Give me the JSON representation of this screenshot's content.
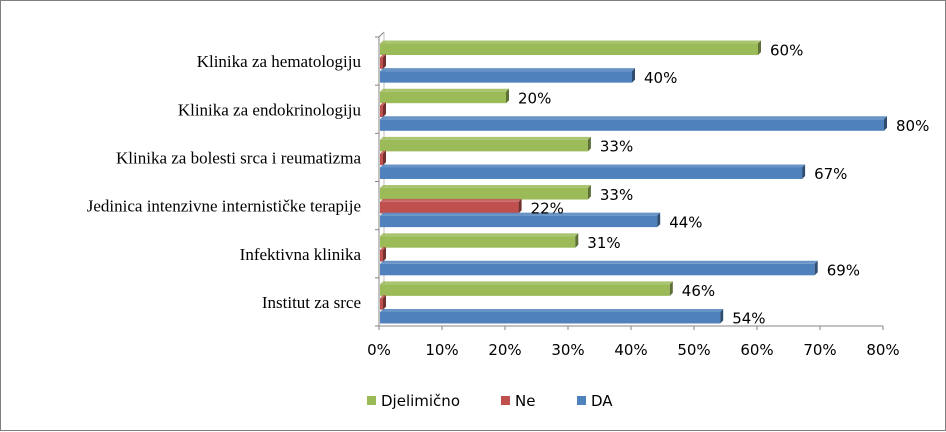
{
  "chart_data": {
    "type": "bar",
    "orientation": "horizontal",
    "style": "3d",
    "categories": [
      "Klinika za hematologiju",
      "Klinika za endokrinologiju",
      "Klinika za bolesti srca i reumatizma",
      "Jedinica intenzivne internističke terapije",
      "Infektivna klinika",
      "Institut za srce"
    ],
    "series": [
      {
        "name": "Djelimično",
        "color": "#9bbb59",
        "values": [
          0.6,
          0.2,
          0.33,
          0.33,
          0.31,
          0.46
        ],
        "labels": [
          "60%",
          "20%",
          "33%",
          "33%",
          "31%",
          "46%"
        ]
      },
      {
        "name": "Ne",
        "color": "#c0504d",
        "values": [
          0.0,
          0.0,
          0.0,
          0.22,
          0.0,
          0.0
        ],
        "labels": [
          "",
          "",
          "",
          "22%",
          "",
          ""
        ]
      },
      {
        "name": "DA",
        "color": "#4f81bd",
        "values": [
          0.4,
          0.8,
          0.67,
          0.44,
          0.69,
          0.54
        ],
        "labels": [
          "40%",
          "80%",
          "67%",
          "44%",
          "69%",
          "54%"
        ]
      }
    ],
    "xlim": [
      0,
      0.8
    ],
    "x_ticks": [
      "0%",
      "10%",
      "20%",
      "30%",
      "40%",
      "50%",
      "60%",
      "70%",
      "80%"
    ],
    "grid": false,
    "legend": "bottom"
  }
}
